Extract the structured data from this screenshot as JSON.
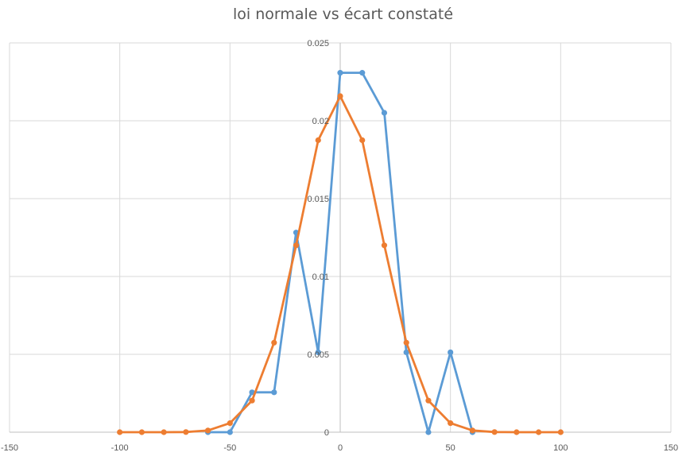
{
  "chart_data": {
    "type": "scatter",
    "title": "loi normale vs écart constaté",
    "xlabel": "",
    "ylabel": "",
    "xlim": [
      -150,
      150
    ],
    "ylim": [
      0,
      0.025
    ],
    "xticks": [
      -150,
      -100,
      -50,
      0,
      50,
      100,
      150
    ],
    "yticks": [
      0,
      0.005,
      0.01,
      0.015,
      0.02,
      0.025
    ],
    "xtick_labels": [
      "-150",
      "-100",
      "-50",
      "0",
      "50",
      "100",
      "150"
    ],
    "ytick_labels": [
      "0",
      "0.005",
      "0.01",
      "0.015",
      "0.02",
      "0.025"
    ],
    "grid": true,
    "legend": "none",
    "series": [
      {
        "color": "#5b9bd5",
        "x": [
          -60,
          -50,
          -40,
          -30,
          -20,
          -10,
          0,
          10,
          20,
          30,
          40,
          50,
          60
        ],
        "y": [
          0,
          0,
          0.00256,
          0.00256,
          0.01282,
          0.00513,
          0.02308,
          0.02308,
          0.02051,
          0.00513,
          0,
          0.00513,
          0
        ]
      },
      {
        "color": "#ed7d31",
        "x": [
          -100,
          -90,
          -80,
          -70,
          -60,
          -50,
          -40,
          -30,
          -20,
          -10,
          0,
          10,
          20,
          30,
          40,
          50,
          60,
          70,
          80,
          90,
          100
        ],
        "y": [
          0,
          0,
          0,
          1e-05,
          0.00011,
          0.00058,
          0.00203,
          0.00575,
          0.012,
          0.01875,
          0.02158,
          0.01875,
          0.012,
          0.00575,
          0.00203,
          0.00058,
          0.00011,
          1e-05,
          0,
          0,
          0
        ]
      }
    ]
  }
}
